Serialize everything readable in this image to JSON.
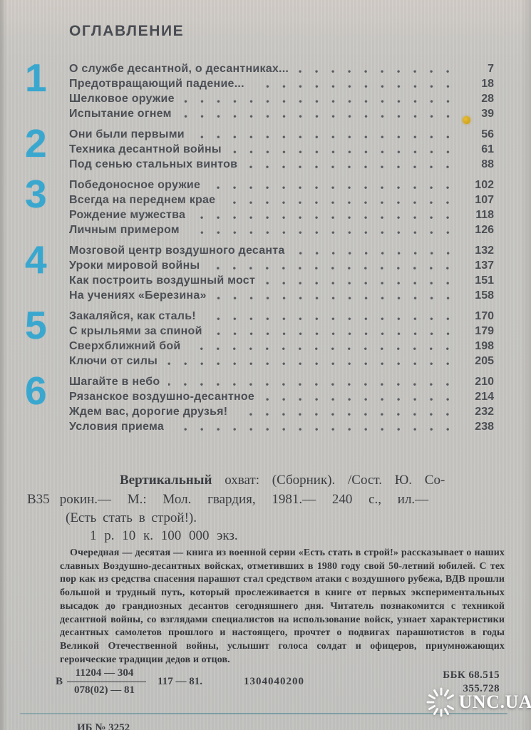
{
  "page": {
    "heading": "ОГЛАВЛЕНИЕ",
    "watermark": "UNC.UA"
  },
  "toc": {
    "sections": [
      {
        "number": "1",
        "entries": [
          {
            "title": "О службе десантной, о десантниках...",
            "page": "7"
          },
          {
            "title": "Предотвращающий падение...",
            "page": "18"
          },
          {
            "title": "Шелковое оружие",
            "page": "28"
          },
          {
            "title": "Испытание огнем",
            "page": "39"
          }
        ]
      },
      {
        "number": "2",
        "entries": [
          {
            "title": "Они были первыми",
            "page": "56"
          },
          {
            "title": "Техника десантной войны",
            "page": "61"
          },
          {
            "title": "Под сенью стальных винтов",
            "page": "88"
          }
        ]
      },
      {
        "number": "3",
        "entries": [
          {
            "title": "Победоносное оружие",
            "page": "102"
          },
          {
            "title": "Всегда на переднем крае",
            "page": "107"
          },
          {
            "title": "Рождение мужества",
            "page": "118"
          },
          {
            "title": "Личным примером",
            "page": "126"
          }
        ]
      },
      {
        "number": "4",
        "entries": [
          {
            "title": "Мозговой центр воздушного десанта",
            "page": "132"
          },
          {
            "title": "Уроки мировой войны",
            "page": "137"
          },
          {
            "title": "Как построить воздушный мост",
            "page": "151"
          },
          {
            "title": "На учениях «Березина»",
            "page": "158"
          }
        ]
      },
      {
        "number": "5",
        "entries": [
          {
            "title": "Закаляйся, как сталь!",
            "page": "170"
          },
          {
            "title": "С крыльями за спиной",
            "page": "179"
          },
          {
            "title": "Сверхближний бой",
            "page": "198"
          },
          {
            "title": "Ключи от силы",
            "page": "205"
          }
        ]
      },
      {
        "number": "6",
        "entries": [
          {
            "title": "Шагайте в небо",
            "page": "210"
          },
          {
            "title": "Рязанское воздушно-десантное",
            "page": "214"
          },
          {
            "title": "Ждем вас, дорогие друзья!",
            "page": "232"
          },
          {
            "title": "Условия приема",
            "page": "238"
          }
        ]
      }
    ]
  },
  "bibliography": {
    "title_bold": "Вертикальный",
    "line1_rest": " охват: (Сборник). /Сост. Ю. Со-",
    "code_letter": "В35",
    "line2": "рокин.— М.: Мол. гвардия, 1981.— 240 с., ил.—",
    "line3": "(Есть стать в строй!).",
    "line4": "1 р. 10 к. 100 000 экз."
  },
  "annotation": {
    "text": "Очередная — десятая — книга из военной серии «Есть стать в строй!» рассказывает о наших славных Воздушно-десантных войсках, отметивших в 1980 году свой 50-летний юбилей. С тех пор как из средства спасения парашют стал средством атаки с воздушного рубежа, ВДВ прошли большой и трудный путь, который прослеживается в книге от первых экспериментальных высадок до грандиозных десантов сегодняшнего дня. Читатель познакомится с техникой десантной войны, со взглядами специалистов на использование войск, узнает характеристики десантных самолетов прошлого и настоящего, прочтет о подвигах парашютистов в годы Великой Отечественной войны, услышит голоса солдат и офицеров, приумножающих героические традиции дедов и отцов."
  },
  "catalog": {
    "letter": "В",
    "numerator": "11204 — 304",
    "denominator": "078(02) — 81",
    "suffix": "117 — 81.",
    "code": "1304040200",
    "bbk_line1": "ББК 68.515",
    "bbk_line2": "355.728"
  },
  "footer": {
    "cut_line": "ИБ № 3252"
  }
}
